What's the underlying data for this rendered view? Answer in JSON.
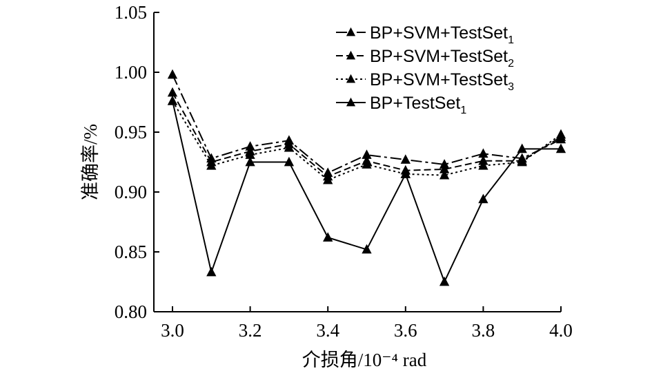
{
  "chart_data": {
    "type": "line",
    "title": "",
    "xlabel": "介损角/10⁻⁴ rad",
    "ylabel": "准确率/%",
    "xlim": [
      3.0,
      4.0
    ],
    "ylim": [
      0.8,
      1.05
    ],
    "x_ticks": [
      "3.0",
      "3.2",
      "3.4",
      "3.6",
      "3.8",
      "4.0"
    ],
    "y_ticks": [
      "0.80",
      "0.85",
      "0.90",
      "0.95",
      "1.00",
      "1.05"
    ],
    "x": [
      3.0,
      3.1,
      3.2,
      3.3,
      3.4,
      3.5,
      3.6,
      3.7,
      3.8,
      3.9,
      4.0
    ],
    "legend_position": "top-right",
    "series": [
      {
        "name": "BP+SVM+TestSet",
        "subscript": "1",
        "style": "dash-dot",
        "values": [
          0.998,
          0.928,
          0.938,
          0.943,
          0.916,
          0.931,
          0.927,
          0.923,
          0.932,
          0.928,
          0.944
        ]
      },
      {
        "name": "BP+SVM+TestSet",
        "subscript": "2",
        "style": "dashed",
        "values": [
          0.983,
          0.925,
          0.934,
          0.94,
          0.913,
          0.926,
          0.918,
          0.919,
          0.926,
          0.926,
          0.946
        ]
      },
      {
        "name": "BP+SVM+TestSet",
        "subscript": "3",
        "style": "dotted",
        "values": [
          0.976,
          0.922,
          0.931,
          0.937,
          0.91,
          0.923,
          0.915,
          0.914,
          0.922,
          0.925,
          0.948
        ]
      },
      {
        "name": "BP+TestSet",
        "subscript": "1",
        "style": "solid",
        "values": [
          0.976,
          0.833,
          0.925,
          0.925,
          0.862,
          0.852,
          0.915,
          0.825,
          0.894,
          0.936,
          0.936
        ]
      }
    ]
  }
}
